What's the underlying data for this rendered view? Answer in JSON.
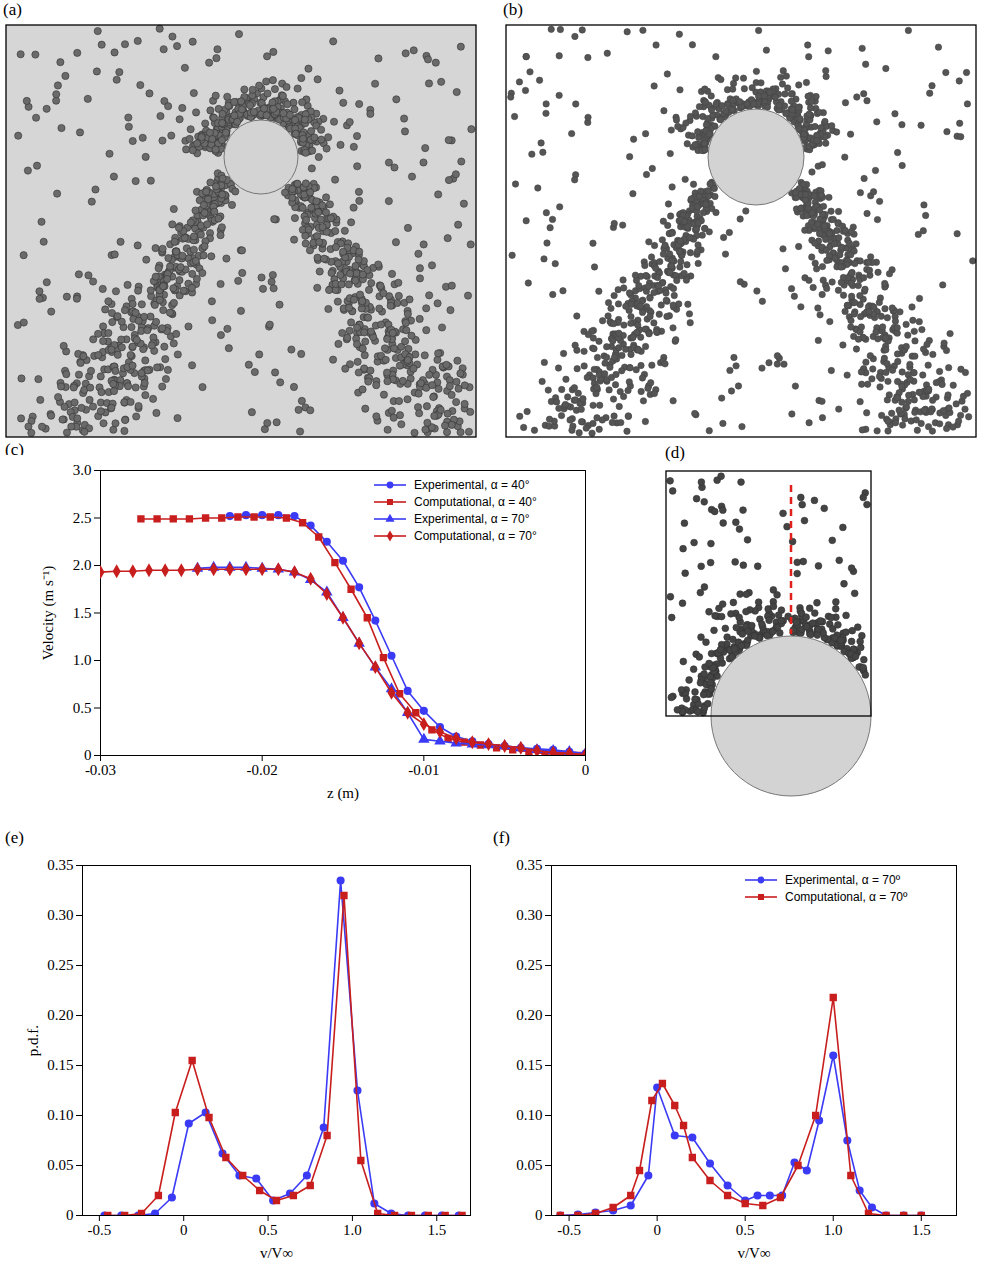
{
  "images": [
    {
      "panel": "(a)"
    },
    {
      "panel": "(b)"
    },
    {
      "panel": "(d)"
    }
  ],
  "chart_data": [
    {
      "panel": "(c)",
      "type": "line",
      "x_label": "z (m)",
      "y_label": "Velocity (m s⁻¹)",
      "xlim": [
        -0.03,
        0
      ],
      "ylim": [
        0,
        3
      ],
      "xticks": [
        -0.03,
        -0.02,
        -0.01,
        0
      ],
      "yticks": [
        0,
        0.5,
        {
          "value": 1,
          "label": "1.0"
        },
        1.5,
        {
          "value": 2,
          "label": "2.0"
        },
        2.5,
        {
          "value": 3,
          "label": "3.0"
        }
      ],
      "legend": "upper right",
      "series": [
        {
          "name": "Experimental, α = 40°",
          "color": "#3b3bf5",
          "marker": "circle",
          "x": [
            -0.022,
            -0.021,
            -0.02,
            -0.019,
            -0.018,
            -0.017,
            -0.016,
            -0.015,
            -0.014,
            -0.013,
            -0.012,
            -0.011,
            -0.01,
            -0.009,
            -0.008,
            -0.007,
            -0.006,
            -0.005,
            -0.004,
            -0.003,
            -0.002,
            -0.001,
            0
          ],
          "values": [
            2.52,
            2.53,
            2.53,
            2.53,
            2.52,
            2.42,
            2.25,
            2.05,
            1.77,
            1.42,
            1.05,
            0.68,
            0.47,
            0.3,
            0.2,
            0.15,
            0.12,
            0.1,
            0.08,
            0.07,
            0.06,
            0.04,
            0.02
          ]
        },
        {
          "name": "Computational, α = 40°",
          "color": "#c81e1e",
          "marker": "square",
          "x": [
            -0.0275,
            -0.0265,
            -0.0255,
            -0.0245,
            -0.0235,
            -0.0225,
            -0.0215,
            -0.0205,
            -0.0195,
            -0.0185,
            -0.0175,
            -0.0165,
            -0.0155,
            -0.0145,
            -0.0135,
            -0.0125,
            -0.0115,
            -0.0105,
            -0.0095,
            -0.0085,
            -0.0075,
            -0.0065,
            -0.0055,
            -0.0045,
            -0.0035,
            -0.0025,
            -0.0015,
            -0.0005
          ],
          "values": [
            2.49,
            2.49,
            2.49,
            2.49,
            2.5,
            2.5,
            2.51,
            2.51,
            2.51,
            2.5,
            2.45,
            2.3,
            2.03,
            1.75,
            1.45,
            1.03,
            0.65,
            0.45,
            0.27,
            0.18,
            0.14,
            0.11,
            0.08,
            0.06,
            0.04,
            0.02,
            0.01,
            0
          ]
        },
        {
          "name": "Experimental, α = 70°",
          "color": "#3b3bf5",
          "marker": "triangle",
          "x": [
            -0.024,
            -0.023,
            -0.022,
            -0.021,
            -0.02,
            -0.019,
            -0.018,
            -0.017,
            -0.016,
            -0.015,
            -0.014,
            -0.013,
            -0.012,
            -0.011,
            -0.01,
            -0.009,
            -0.008,
            -0.007,
            -0.006,
            -0.005,
            -0.004,
            -0.003,
            -0.002,
            -0.001,
            0
          ],
          "values": [
            1.97,
            1.98,
            1.98,
            1.98,
            1.97,
            1.96,
            1.93,
            1.85,
            1.72,
            1.45,
            1.18,
            0.93,
            0.7,
            0.45,
            0.17,
            0.15,
            0.13,
            0.12,
            0.11,
            0.1,
            0.08,
            0.06,
            0.05,
            0.04,
            0.02
          ]
        },
        {
          "name": "Computational, α = 70°",
          "color": "#c81e1e",
          "marker": "diamond",
          "x": [
            -0.03,
            -0.029,
            -0.028,
            -0.027,
            -0.026,
            -0.025,
            -0.024,
            -0.023,
            -0.022,
            -0.021,
            -0.02,
            -0.019,
            -0.018,
            -0.017,
            -0.016,
            -0.015,
            -0.014,
            -0.013,
            -0.012,
            -0.011,
            -0.01,
            -0.009,
            -0.008,
            -0.007,
            -0.006,
            -0.005,
            -0.004,
            -0.003,
            -0.002,
            -0.001,
            0
          ],
          "values": [
            1.93,
            1.94,
            1.94,
            1.95,
            1.95,
            1.95,
            1.96,
            1.96,
            1.96,
            1.96,
            1.96,
            1.96,
            1.93,
            1.86,
            1.7,
            1.45,
            1.18,
            0.93,
            0.66,
            0.45,
            0.33,
            0.25,
            0.18,
            0.14,
            0.12,
            0.1,
            0.08,
            0.05,
            0.03,
            0.02,
            0.01
          ]
        }
      ]
    },
    {
      "panel": "(e)",
      "type": "line",
      "x_label": "v/V∞",
      "y_label": "p.d.f.",
      "xlim": [
        -0.6,
        1.7
      ],
      "ylim": [
        0,
        0.35
      ],
      "xticks": [
        -0.5,
        0,
        0.5,
        {
          "value": 1,
          "label": "1.0"
        },
        1.5
      ],
      "yticks": [
        0,
        0.05,
        {
          "value": 0.1,
          "label": "0.10"
        },
        0.15,
        {
          "value": 0.2,
          "label": "0.20"
        },
        0.25,
        {
          "value": 0.3,
          "label": "0.30"
        },
        0.35
      ],
      "series": [
        {
          "color": "#3b3bf5",
          "marker": "circle",
          "x": [
            -0.47,
            -0.37,
            -0.27,
            -0.17,
            -0.07,
            0.03,
            0.13,
            0.23,
            0.33,
            0.43,
            0.53,
            0.63,
            0.73,
            0.83,
            0.93,
            1.03,
            1.13,
            1.23,
            1.33,
            1.43,
            1.53,
            1.63
          ],
          "values": [
            0,
            0,
            0,
            0.002,
            0.018,
            0.092,
            0.103,
            0.062,
            0.04,
            0.037,
            0.015,
            0.022,
            0.04,
            0.088,
            0.335,
            0.125,
            0.012,
            0.002,
            0,
            0,
            0,
            0
          ]
        },
        {
          "color": "#c81e1e",
          "marker": "square",
          "x": [
            -0.45,
            -0.35,
            -0.25,
            -0.15,
            -0.05,
            0.05,
            0.15,
            0.25,
            0.35,
            0.45,
            0.55,
            0.65,
            0.75,
            0.85,
            0.95,
            1.05,
            1.15,
            1.25,
            1.35,
            1.45,
            1.55,
            1.65
          ],
          "values": [
            0,
            0,
            0.002,
            0.02,
            0.103,
            0.155,
            0.098,
            0.058,
            0.04,
            0.025,
            0.015,
            0.02,
            0.03,
            0.08,
            0.32,
            0.055,
            0.002,
            0,
            0,
            0,
            0,
            0
          ]
        }
      ]
    },
    {
      "panel": "(f)",
      "type": "line",
      "x_label": "v/V∞",
      "xlim": [
        -0.6,
        1.7
      ],
      "ylim": [
        0,
        0.35
      ],
      "xticks": [
        -0.5,
        0,
        0.5,
        {
          "value": 1,
          "label": "1.0"
        },
        1.5
      ],
      "yticks": [
        0,
        0.05,
        {
          "value": 0.1,
          "label": "0.10"
        },
        0.15,
        {
          "value": 0.2,
          "label": "0.20"
        },
        0.25,
        {
          "value": 0.3,
          "label": "0.30"
        },
        0.35
      ],
      "legend": "upper right",
      "series": [
        {
          "name": "Experimental, α = 70º",
          "color": "#3b3bf5",
          "marker": "circle",
          "x": [
            -0.55,
            -0.45,
            -0.35,
            -0.25,
            -0.15,
            -0.05,
            0,
            0.1,
            0.2,
            0.3,
            0.4,
            0.5,
            0.57,
            0.64,
            0.71,
            0.78,
            0.85,
            0.92,
            1,
            1.08,
            1.15,
            1.22,
            1.3,
            1.4,
            1.5
          ],
          "values": [
            0,
            0.001,
            0.003,
            0.005,
            0.01,
            0.04,
            0.128,
            0.08,
            0.078,
            0.052,
            0.03,
            0.015,
            0.02,
            0.02,
            0.02,
            0.053,
            0.045,
            0.095,
            0.16,
            0.075,
            0.025,
            0.008,
            0,
            0,
            0
          ]
        },
        {
          "name": "Computational, α = 70º",
          "color": "#c81e1e",
          "marker": "square",
          "x": [
            -0.55,
            -0.45,
            -0.35,
            -0.25,
            -0.15,
            -0.1,
            -0.03,
            0.03,
            0.1,
            0.15,
            0.2,
            0.3,
            0.4,
            0.5,
            0.6,
            0.7,
            0.8,
            0.9,
            1,
            1.1,
            1.2,
            1.3,
            1.4,
            1.5
          ],
          "values": [
            0,
            0,
            0.002,
            0.008,
            0.02,
            0.045,
            0.115,
            0.132,
            0.11,
            0.09,
            0.058,
            0.035,
            0.02,
            0.012,
            0.01,
            0.018,
            0.05,
            0.1,
            0.218,
            0.04,
            0.002,
            0,
            0,
            0
          ]
        }
      ]
    }
  ]
}
